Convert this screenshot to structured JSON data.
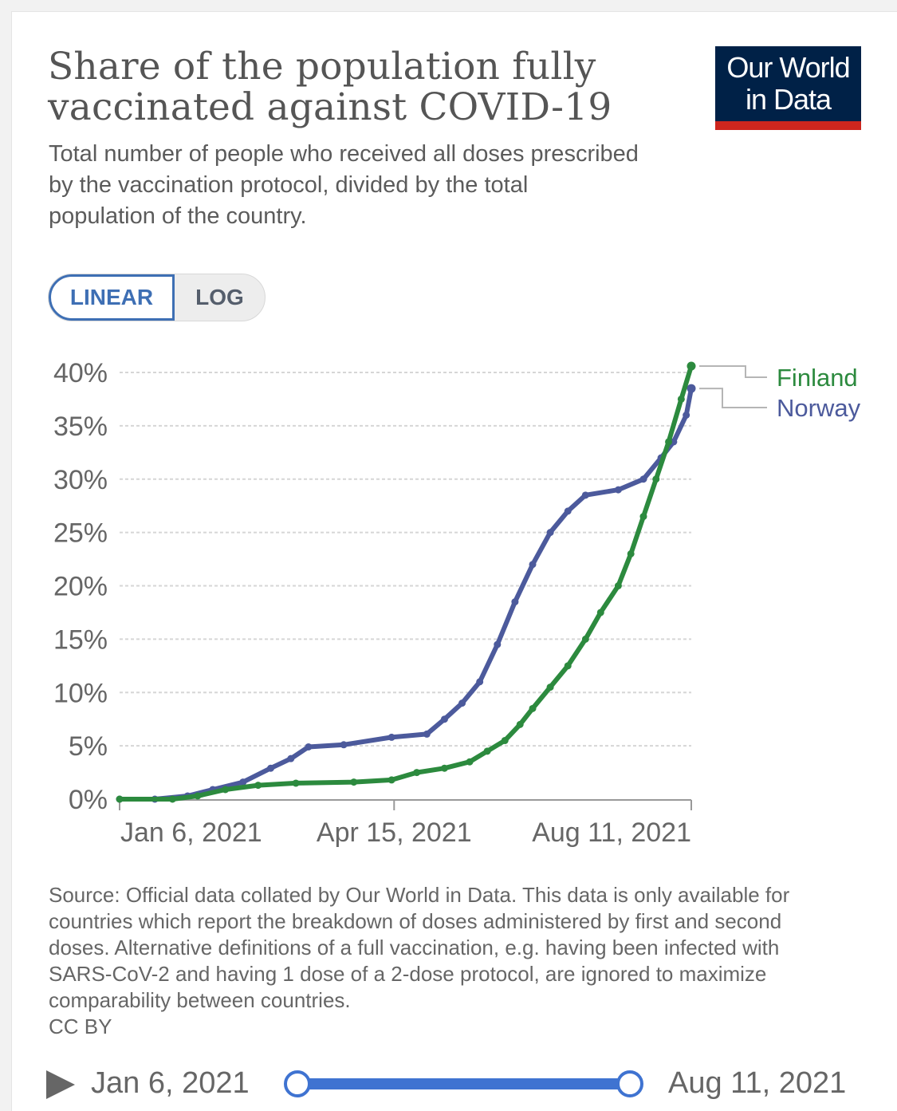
{
  "header": {
    "title": "Share of the population fully vaccinated against COVID-19",
    "subtitle": "Total number of people who received all doses prescribed by the vaccination protocol, divided by the total population of the country."
  },
  "logo": {
    "line1": "Our World",
    "line2": "in Data",
    "bg_color": "#002147",
    "bar_color": "#ce261e"
  },
  "scale_toggle": {
    "linear_label": "LINEAR",
    "log_label": "LOG",
    "selected": "LINEAR"
  },
  "chart_data": {
    "type": "line",
    "title": "Share of the population fully vaccinated against COVID-19",
    "xlabel": "",
    "ylabel": "",
    "x_ticks": [
      "Jan 6, 2021",
      "Apr 15, 2021",
      "Aug 11, 2021"
    ],
    "x_range": [
      "2020-12-27",
      "2021-08-11"
    ],
    "y_ticks": [
      "0%",
      "5%",
      "10%",
      "15%",
      "20%",
      "25%",
      "30%",
      "35%",
      "40%"
    ],
    "ylim": [
      0,
      40
    ],
    "grid": "horizontal dashed",
    "legend": "end-of-line labels, right",
    "series": [
      {
        "name": "Finland",
        "color": "#2c8a3e",
        "points": [
          [
            "2020-12-27",
            0
          ],
          [
            "2021-01-17",
            0
          ],
          [
            "2021-01-27",
            0.3
          ],
          [
            "2021-02-07",
            0.9
          ],
          [
            "2021-02-20",
            1.3
          ],
          [
            "2021-03-07",
            1.5
          ],
          [
            "2021-03-30",
            1.6
          ],
          [
            "2021-04-14",
            1.8
          ],
          [
            "2021-04-24",
            2.5
          ],
          [
            "2021-05-05",
            2.9
          ],
          [
            "2021-05-15",
            3.5
          ],
          [
            "2021-05-22",
            4.5
          ],
          [
            "2021-05-29",
            5.5
          ],
          [
            "2021-06-04",
            7.0
          ],
          [
            "2021-06-09",
            8.5
          ],
          [
            "2021-06-16",
            10.5
          ],
          [
            "2021-06-23",
            12.5
          ],
          [
            "2021-06-30",
            15.0
          ],
          [
            "2021-07-06",
            17.5
          ],
          [
            "2021-07-13",
            20.0
          ],
          [
            "2021-07-18",
            23.0
          ],
          [
            "2021-07-23",
            26.5
          ],
          [
            "2021-07-28",
            30.0
          ],
          [
            "2021-08-02",
            33.5
          ],
          [
            "2021-08-07",
            37.5
          ],
          [
            "2021-08-11",
            40.6
          ]
        ]
      },
      {
        "name": "Norway",
        "color": "#4c5a9c",
        "points": [
          [
            "2020-12-27",
            0
          ],
          [
            "2021-01-10",
            0
          ],
          [
            "2021-01-23",
            0.3
          ],
          [
            "2021-02-02",
            0.9
          ],
          [
            "2021-02-14",
            1.6
          ],
          [
            "2021-02-25",
            2.9
          ],
          [
            "2021-03-05",
            3.8
          ],
          [
            "2021-03-12",
            4.9
          ],
          [
            "2021-03-26",
            5.1
          ],
          [
            "2021-04-14",
            5.8
          ],
          [
            "2021-04-28",
            6.1
          ],
          [
            "2021-05-05",
            7.5
          ],
          [
            "2021-05-12",
            9.0
          ],
          [
            "2021-05-19",
            11.0
          ],
          [
            "2021-05-26",
            14.5
          ],
          [
            "2021-06-02",
            18.5
          ],
          [
            "2021-06-09",
            22.0
          ],
          [
            "2021-06-16",
            25.0
          ],
          [
            "2021-06-23",
            27.0
          ],
          [
            "2021-06-30",
            28.5
          ],
          [
            "2021-07-13",
            29.0
          ],
          [
            "2021-07-23",
            30.0
          ],
          [
            "2021-07-30",
            32.0
          ],
          [
            "2021-08-04",
            33.5
          ],
          [
            "2021-08-09",
            36.0
          ],
          [
            "2021-08-11",
            38.5
          ]
        ]
      }
    ]
  },
  "source_note": "Source: Official data collated by Our World in Data. This data is only available for countries which report the breakdown of doses administered by first and second doses. Alternative definitions of a full vaccination, e.g. having been infected with SARS-CoV-2 and having 1 dose of a 2-dose protocol, are ignored to maximize comparability between countries.",
  "license": "CC BY",
  "timeline": {
    "start_label": "Jan 6, 2021",
    "end_label": "Aug 11, 2021",
    "accent_color": "#3f73d1"
  }
}
